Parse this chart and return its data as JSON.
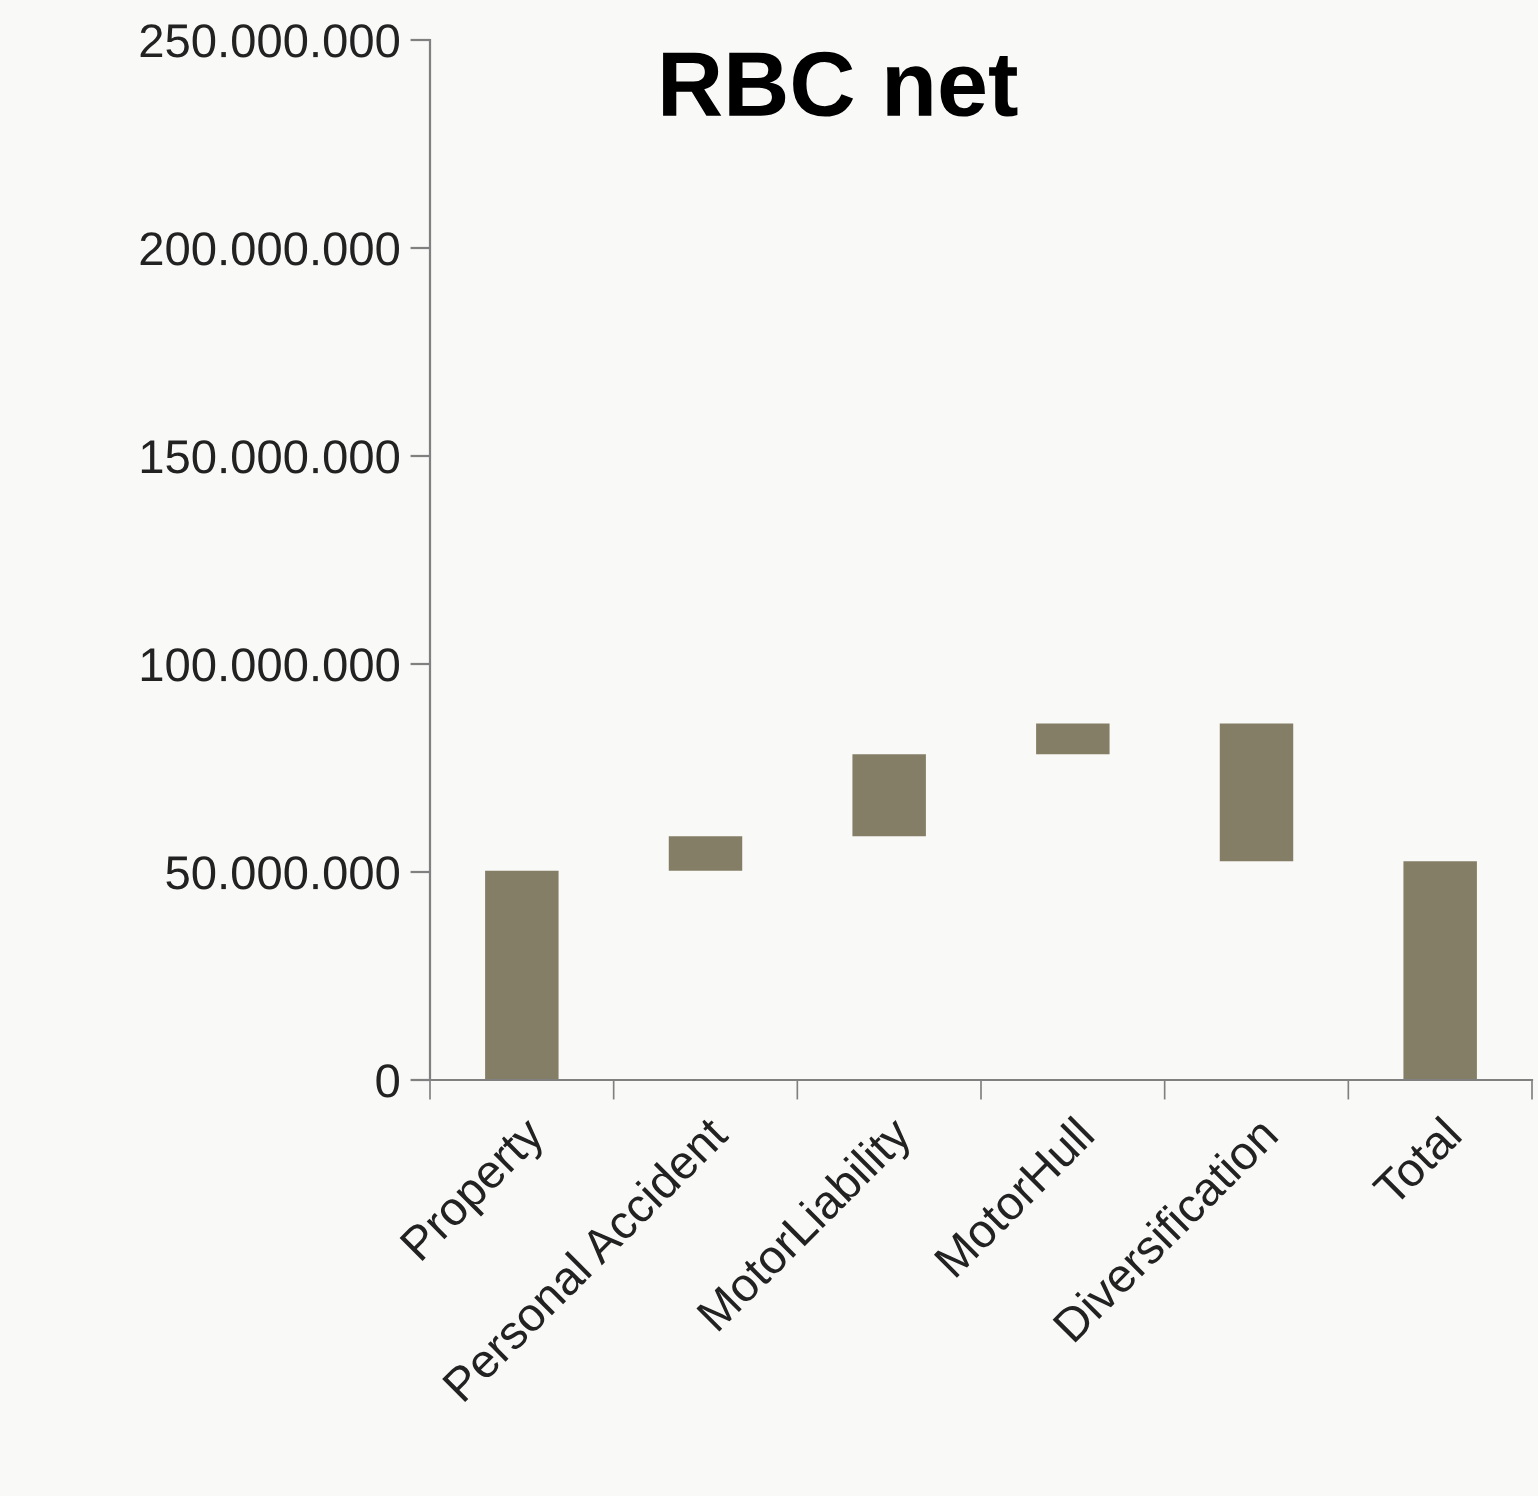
{
  "chart_data": {
    "type": "bar",
    "title": "RBC net",
    "categories": [
      "Property",
      "Personal Accident",
      "MotorLiability",
      "MotorHull",
      "Diversification",
      "Total"
    ],
    "values": [
      50300000,
      8300000,
      19700000,
      7400000,
      -33100000,
      52600000
    ],
    "base": [
      0,
      50300000,
      58600000,
      78300000,
      85700000,
      0
    ],
    "color": "#857e66",
    "ylim": [
      0,
      250000000
    ],
    "yticks": [
      {
        "value": 0,
        "label": "0"
      },
      {
        "value": 50000000,
        "label": "50.000.000"
      },
      {
        "value": 100000000,
        "label": "100.000.000"
      },
      {
        "value": 150000000,
        "label": "150.000.000"
      },
      {
        "value": 200000000,
        "label": "200.000.000"
      },
      {
        "value": 250000000,
        "label": "250.000.000"
      }
    ],
    "grid": false,
    "legend": false
  }
}
